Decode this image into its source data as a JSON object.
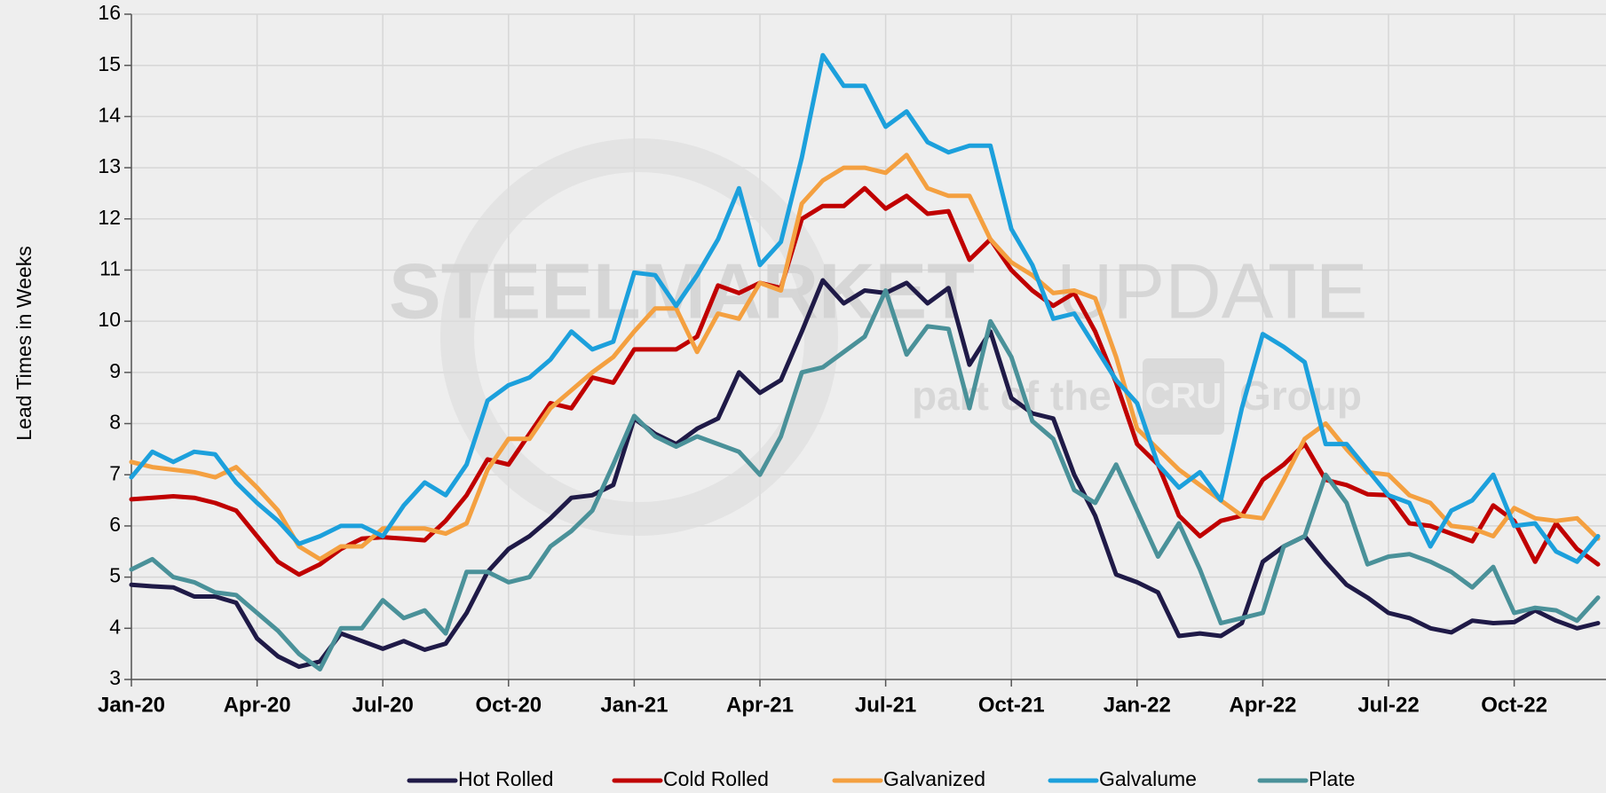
{
  "chart_data": {
    "type": "line",
    "y_label": "Lead Times in Weeks",
    "watermark": {
      "brand_bold": "STEELMARKET",
      "brand_light": "UPDATE",
      "tagline": "part of the",
      "logo": "CRU",
      "group": "Group"
    },
    "categories": [
      "Jan-20",
      null,
      null,
      null,
      null,
      null,
      "Apr-20",
      null,
      null,
      null,
      null,
      null,
      "Jul-20",
      null,
      null,
      null,
      null,
      null,
      "Oct-20",
      null,
      null,
      null,
      null,
      null,
      "Jan-21",
      null,
      null,
      null,
      null,
      null,
      "Apr-21",
      null,
      null,
      null,
      null,
      null,
      "Jul-21",
      null,
      null,
      null,
      null,
      null,
      "Oct-21",
      null,
      null,
      null,
      null,
      null,
      "Jan-22",
      null,
      null,
      null,
      null,
      null,
      "Apr-22",
      null,
      null,
      null,
      null,
      null,
      "Jul-22",
      null,
      null,
      null,
      null,
      null,
      "Oct-22",
      null,
      null,
      null,
      null
    ],
    "ylim": [
      3,
      16
    ],
    "yticks": [
      3,
      4,
      5,
      6,
      7,
      8,
      9,
      10,
      11,
      12,
      13,
      14,
      15,
      16
    ],
    "grid": true,
    "legend": "bottom",
    "series": [
      {
        "name": "Hot Rolled",
        "color": "#1f1a47",
        "values": [
          4.85,
          4.82,
          4.8,
          4.62,
          4.62,
          4.5,
          3.8,
          3.45,
          3.25,
          3.35,
          3.9,
          3.75,
          3.6,
          3.75,
          3.58,
          3.7,
          4.3,
          5.1,
          5.55,
          5.8,
          6.15,
          6.55,
          6.6,
          6.8,
          8.1,
          7.8,
          7.6,
          7.9,
          8.1,
          9.0,
          8.6,
          8.85,
          9.8,
          10.8,
          10.35,
          10.6,
          10.55,
          10.75,
          10.35,
          10.65,
          9.15,
          9.8,
          8.5,
          8.2,
          8.1,
          7.0,
          6.2,
          5.05,
          4.9,
          4.7,
          3.85,
          3.9,
          3.85,
          4.1,
          5.3,
          5.6,
          5.8,
          5.3,
          4.85,
          4.6,
          4.3,
          4.2,
          4.0,
          3.92,
          4.15,
          4.1,
          4.12,
          4.35,
          4.15,
          4.0,
          4.1
        ]
      },
      {
        "name": "Cold Rolled",
        "color": "#c00000",
        "values": [
          6.52,
          6.55,
          6.58,
          6.55,
          6.45,
          6.3,
          5.8,
          5.3,
          5.05,
          5.25,
          5.55,
          5.75,
          5.78,
          5.75,
          5.72,
          6.1,
          6.6,
          7.3,
          7.2,
          7.8,
          8.4,
          8.3,
          8.9,
          8.8,
          9.45,
          9.45,
          9.45,
          9.7,
          10.7,
          10.55,
          10.75,
          10.65,
          12.0,
          12.25,
          12.25,
          12.6,
          12.2,
          12.45,
          12.1,
          12.15,
          11.2,
          11.6,
          11.0,
          10.6,
          10.3,
          10.55,
          9.8,
          8.8,
          7.6,
          7.2,
          6.2,
          5.8,
          6.1,
          6.2,
          6.9,
          7.2,
          7.6,
          6.9,
          6.8,
          6.62,
          6.6,
          6.05,
          6.0,
          5.85,
          5.7,
          6.4,
          6.1,
          5.3,
          6.05,
          5.55,
          5.25
        ]
      },
      {
        "name": "Galvanized",
        "color": "#f4a040",
        "values": [
          7.25,
          7.15,
          7.1,
          7.05,
          6.95,
          7.15,
          6.75,
          6.3,
          5.6,
          5.35,
          5.6,
          5.6,
          5.95,
          5.95,
          5.95,
          5.85,
          6.05,
          7.1,
          7.7,
          7.7,
          8.3,
          8.65,
          9.0,
          9.3,
          9.8,
          10.25,
          10.25,
          9.4,
          10.15,
          10.05,
          10.75,
          10.6,
          12.3,
          12.75,
          13.0,
          13.0,
          12.9,
          13.25,
          12.6,
          12.45,
          12.45,
          11.6,
          11.15,
          10.9,
          10.55,
          10.6,
          10.45,
          9.3,
          7.9,
          7.5,
          7.1,
          6.8,
          6.5,
          6.2,
          6.15,
          6.9,
          7.7,
          8.0,
          7.5,
          7.05,
          7.0,
          6.6,
          6.45,
          6.0,
          5.95,
          5.8,
          6.35,
          6.15,
          6.1,
          6.15,
          5.75
        ]
      },
      {
        "name": "Galvalume",
        "color": "#1ca0dc",
        "values": [
          6.95,
          7.45,
          7.25,
          7.45,
          7.4,
          6.85,
          6.45,
          6.1,
          5.65,
          5.8,
          6.0,
          6.0,
          5.8,
          6.4,
          6.85,
          6.6,
          7.2,
          8.45,
          8.75,
          8.9,
          9.25,
          9.8,
          9.45,
          9.6,
          10.95,
          10.9,
          10.3,
          10.9,
          11.6,
          12.6,
          11.1,
          11.55,
          13.2,
          15.2,
          14.6,
          14.6,
          13.8,
          14.1,
          13.5,
          13.3,
          13.43,
          13.43,
          11.8,
          11.1,
          10.05,
          10.15,
          9.5,
          8.85,
          8.4,
          7.2,
          6.75,
          7.05,
          6.5,
          8.3,
          9.75,
          9.5,
          9.2,
          7.6,
          7.6,
          7.1,
          6.6,
          6.45,
          5.6,
          6.3,
          6.5,
          7.0,
          6.0,
          6.05,
          5.5,
          5.3,
          5.8
        ]
      },
      {
        "name": "Plate",
        "color": "#4a9199",
        "values": [
          5.15,
          5.35,
          5.0,
          4.9,
          4.7,
          4.65,
          4.3,
          3.95,
          3.5,
          3.2,
          4.0,
          4.0,
          4.55,
          4.2,
          4.35,
          3.9,
          5.1,
          5.1,
          4.9,
          5.0,
          5.6,
          5.9,
          6.3,
          7.2,
          8.15,
          7.75,
          7.55,
          7.75,
          7.6,
          7.45,
          7.0,
          7.75,
          9.0,
          9.1,
          9.4,
          9.7,
          10.6,
          9.35,
          9.9,
          9.85,
          8.3,
          10.0,
          9.3,
          8.05,
          7.7,
          6.7,
          6.45,
          7.2,
          6.3,
          5.4,
          6.05,
          5.15,
          4.1,
          4.2,
          4.3,
          5.6,
          5.8,
          7.0,
          6.45,
          5.25,
          5.4,
          5.45,
          5.3,
          5.1,
          4.8,
          5.2,
          4.3,
          4.4,
          4.35,
          4.15,
          4.6
        ]
      }
    ]
  }
}
